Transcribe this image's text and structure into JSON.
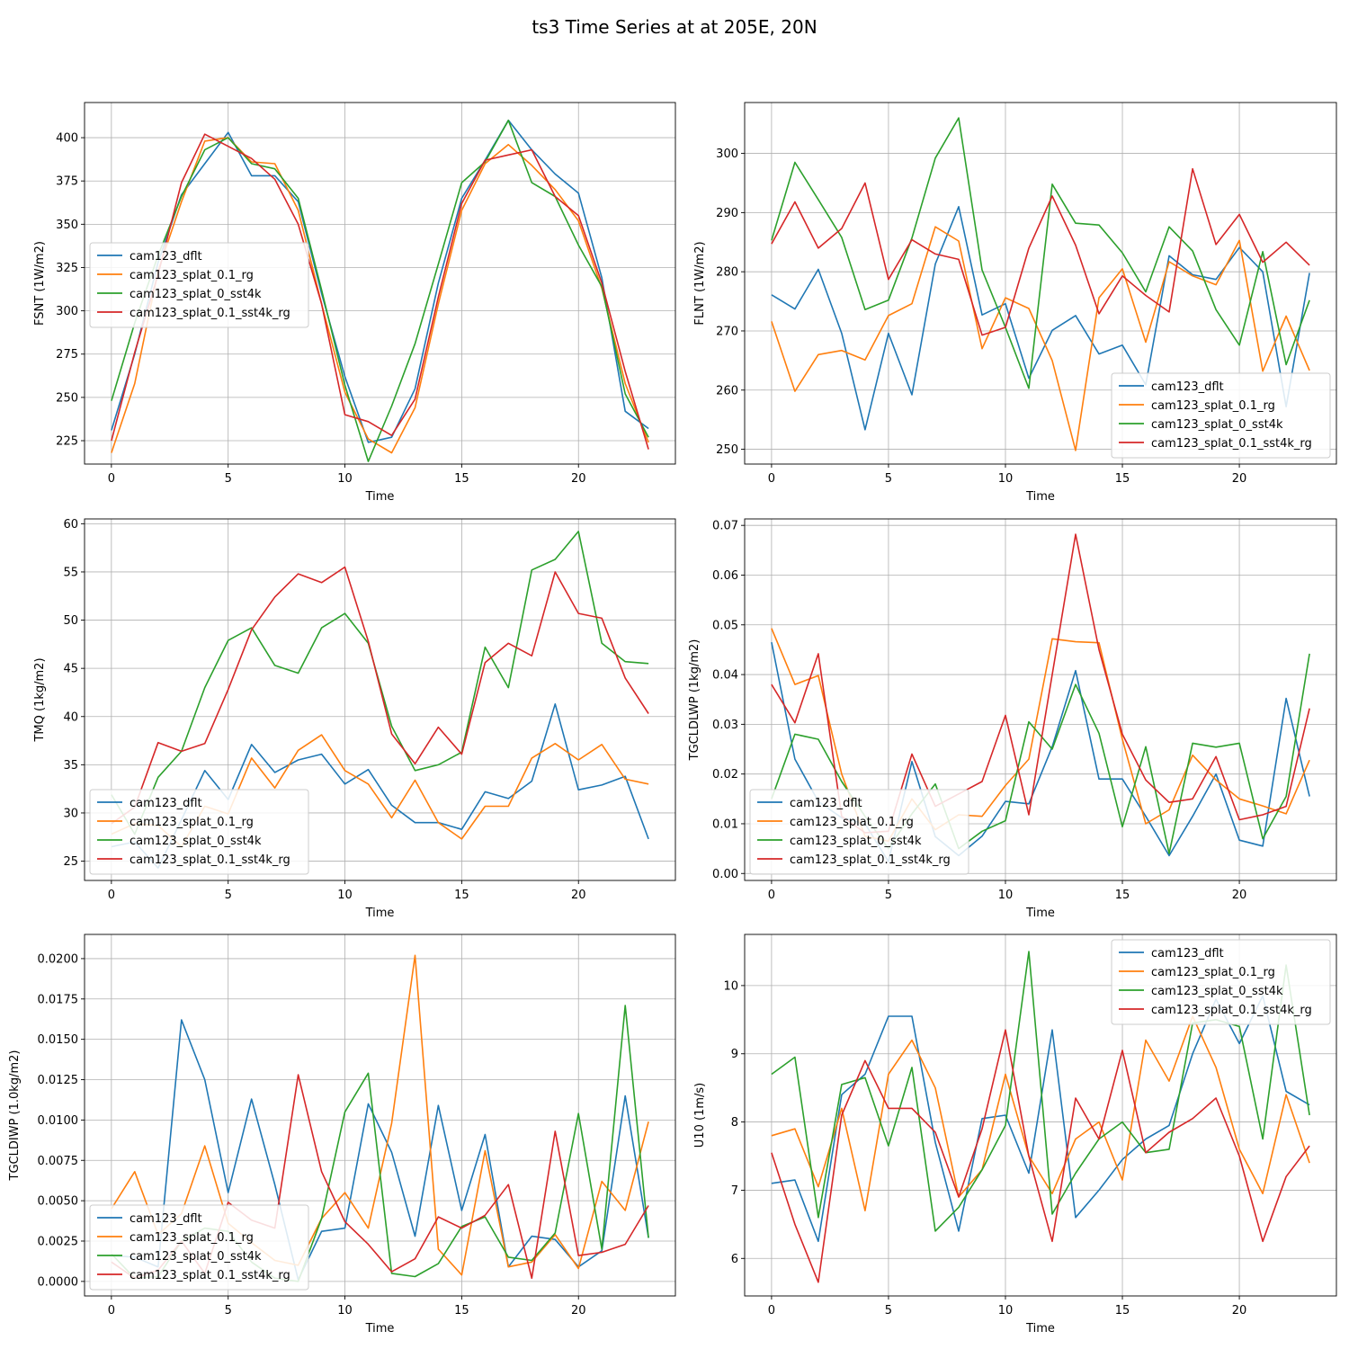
{
  "title": "ts3 Time Series at at 205E, 20N",
  "colors": [
    "#1f77b4",
    "#ff7f0e",
    "#2ca02c",
    "#d62728"
  ],
  "legend": [
    "cam123_dflt",
    "cam123_splat_0.1_rg",
    "cam123_splat_0_sst4k",
    "cam123_splat_0.1_sst4k_rg"
  ],
  "chart_data": [
    {
      "type": "line",
      "xlabel": "Time",
      "ylabel": "FSNT (1W/m2)",
      "xlim": [
        -1.15,
        24.15
      ],
      "ylim": [
        420.3,
        211.5
      ],
      "xticks": [
        0,
        5,
        10,
        15,
        20
      ],
      "xtick_labels": [
        "0",
        "5",
        "10",
        "15",
        "20"
      ],
      "yticks": [
        225,
        250,
        275,
        300,
        325,
        350,
        375,
        400
      ],
      "ytick_labels": [
        "225",
        "250",
        "275",
        "300",
        "325",
        "350",
        "375",
        "400"
      ],
      "legend_loc": "center-left",
      "x": [
        0,
        1,
        2,
        3,
        4,
        5,
        6,
        7,
        8,
        9,
        10,
        11,
        12,
        13,
        14,
        15,
        16,
        17,
        18,
        19,
        20,
        21,
        22,
        23
      ],
      "series": [
        {
          "name": "cam123_dflt",
          "values": [
            231,
            275,
            328,
            367,
            385,
            403,
            378,
            378,
            363,
            310,
            262,
            224,
            227,
            255,
            316,
            365,
            387,
            410,
            393,
            379,
            368,
            319,
            242,
            232
          ]
        },
        {
          "name": "cam123_splat_0.1_rg",
          "values": [
            218,
            258,
            323,
            363,
            398,
            400,
            386,
            385,
            358,
            304,
            253,
            226,
            218,
            244,
            304,
            358,
            385,
            396,
            384,
            370,
            352,
            313,
            258,
            224
          ]
        },
        {
          "name": "cam123_splat_0_sst4k",
          "values": [
            248,
            293,
            332,
            366,
            393,
            400,
            385,
            382,
            365,
            312,
            257,
            213,
            245,
            281,
            327,
            374,
            386,
            410,
            374,
            366,
            338,
            314,
            252,
            227
          ]
        },
        {
          "name": "cam123_splat_0.1_sst4k_rg",
          "values": [
            225,
            276,
            321,
            374,
            402,
            395,
            388,
            376,
            350,
            304,
            240,
            236,
            228,
            249,
            308,
            362,
            387,
            390,
            393,
            366,
            355,
            316,
            265,
            220
          ]
        }
      ]
    },
    {
      "type": "line",
      "xlabel": "Time",
      "ylabel": "FLNT (1W/m2)",
      "xlim": [
        -1.15,
        24.15
      ],
      "ylim": [
        308.6,
        247.5
      ],
      "xticks": [
        0,
        5,
        10,
        15,
        20
      ],
      "xtick_labels": [
        "0",
        "5",
        "10",
        "15",
        "20"
      ],
      "yticks": [
        250,
        260,
        270,
        280,
        290,
        300
      ],
      "ytick_labels": [
        "250",
        "260",
        "270",
        "280",
        "290",
        "300"
      ],
      "legend_loc": "lower-right",
      "x": [
        0,
        1,
        2,
        3,
        4,
        5,
        6,
        7,
        8,
        9,
        10,
        11,
        12,
        13,
        14,
        15,
        16,
        17,
        18,
        19,
        20,
        21,
        22,
        23
      ],
      "series": [
        {
          "name": "cam123_dflt",
          "values": [
            276.1,
            273.7,
            280.4,
            269.6,
            253.3,
            269.6,
            259.2,
            281.3,
            291.0,
            272.7,
            274.6,
            262.0,
            270.1,
            272.6,
            266.1,
            267.6,
            260.9,
            282.7,
            279.5,
            278.7,
            284.1,
            280.0,
            257.2,
            279.8
          ]
        },
        {
          "name": "cam123_splat_0.1_rg",
          "values": [
            271.6,
            259.8,
            266.0,
            266.7,
            265.1,
            272.6,
            274.6,
            287.6,
            285.2,
            267.0,
            275.6,
            273.8,
            265.0,
            249.8,
            275.6,
            280.5,
            268.1,
            281.7,
            279.3,
            277.8,
            285.3,
            263.2,
            272.5,
            263.3
          ]
        },
        {
          "name": "cam123_splat_0_sst4k",
          "values": [
            285.3,
            298.5,
            292.2,
            285.8,
            273.6,
            275.2,
            285.7,
            299.2,
            306.0,
            280.3,
            270.6,
            260.3,
            294.8,
            288.2,
            287.9,
            283.2,
            276.6,
            287.6,
            283.5,
            273.6,
            267.6,
            283.4,
            264.3,
            275.2
          ]
        },
        {
          "name": "cam123_splat_0.1_sst4k_rg",
          "values": [
            284.7,
            291.8,
            284.0,
            287.3,
            295.0,
            278.7,
            285.4,
            283.0,
            282.1,
            269.3,
            270.6,
            284.0,
            292.8,
            284.5,
            272.9,
            279.3,
            276.0,
            273.2,
            297.4,
            284.6,
            289.7,
            281.6,
            285.0,
            281.1
          ]
        }
      ]
    },
    {
      "type": "line",
      "xlabel": "Time",
      "ylabel": "TMQ (1kg/m2)",
      "xlim": [
        -1.15,
        24.15
      ],
      "ylim": [
        60.5,
        23.0
      ],
      "xticks": [
        0,
        5,
        10,
        15,
        20
      ],
      "xtick_labels": [
        "0",
        "5",
        "10",
        "15",
        "20"
      ],
      "yticks": [
        25,
        30,
        35,
        40,
        45,
        50,
        55,
        60
      ],
      "ytick_labels": [
        "25",
        "30",
        "35",
        "40",
        "45",
        "50",
        "55",
        "60"
      ],
      "legend_loc": "lower-left",
      "x": [
        0,
        1,
        2,
        3,
        4,
        5,
        6,
        7,
        8,
        9,
        10,
        11,
        12,
        13,
        14,
        15,
        16,
        17,
        18,
        19,
        20,
        21,
        22,
        23
      ],
      "series": [
        {
          "name": "cam123_dflt",
          "values": [
            26.5,
            27.0,
            24.3,
            29.3,
            34.4,
            31.4,
            37.1,
            34.2,
            35.5,
            36.1,
            33.0,
            34.5,
            30.8,
            29.0,
            29.0,
            28.3,
            32.2,
            31.5,
            33.3,
            41.3,
            32.4,
            32.9,
            33.8,
            27.3
          ]
        },
        {
          "name": "cam123_splat_0.1_rg",
          "values": [
            27.8,
            28.9,
            28.7,
            26.5,
            30.7,
            29.9,
            35.7,
            32.6,
            36.5,
            38.1,
            34.4,
            33.0,
            29.5,
            33.4,
            29.0,
            27.3,
            30.7,
            30.7,
            35.7,
            37.2,
            35.5,
            37.1,
            33.5,
            33.0
          ]
        },
        {
          "name": "cam123_splat_0_sst4k",
          "values": [
            31.9,
            27.8,
            33.7,
            36.4,
            43.0,
            47.9,
            49.2,
            45.3,
            44.5,
            49.2,
            50.7,
            47.6,
            39.0,
            34.4,
            35.0,
            36.3,
            47.2,
            43.0,
            55.2,
            56.3,
            59.2,
            47.6,
            45.7,
            45.5
          ]
        },
        {
          "name": "cam123_splat_0.1_sst4k_rg",
          "values": [
            28.9,
            30.6,
            37.3,
            36.4,
            37.2,
            42.8,
            49.0,
            52.4,
            54.8,
            53.9,
            55.5,
            47.8,
            38.2,
            35.1,
            38.9,
            36.1,
            45.6,
            47.6,
            46.3,
            55.0,
            50.7,
            50.2,
            44.0,
            40.3
          ]
        }
      ]
    },
    {
      "type": "line",
      "xlabel": "Time",
      "ylabel": "TGCLDLWP (1kg/m2)",
      "xlim": [
        -1.15,
        24.15
      ],
      "ylim": [
        0.0713,
        -0.0014
      ],
      "xticks": [
        0,
        5,
        10,
        15,
        20
      ],
      "xtick_labels": [
        "0",
        "5",
        "10",
        "15",
        "20"
      ],
      "yticks": [
        0.0,
        0.01,
        0.02,
        0.03,
        0.04,
        0.05,
        0.06,
        0.07
      ],
      "ytick_labels": [
        "0.00",
        "0.01",
        "0.02",
        "0.03",
        "0.04",
        "0.05",
        "0.06",
        "0.07"
      ],
      "legend_loc": "lower-left",
      "x": [
        0,
        1,
        2,
        3,
        4,
        5,
        6,
        7,
        8,
        9,
        10,
        11,
        12,
        13,
        14,
        15,
        16,
        17,
        18,
        19,
        20,
        21,
        22,
        23
      ],
      "series": [
        {
          "name": "cam123_dflt",
          "values": [
            0.0465,
            0.023,
            0.0145,
            0.0112,
            0.01,
            0.0024,
            0.0225,
            0.0074,
            0.0036,
            0.0075,
            0.0145,
            0.014,
            0.0255,
            0.0408,
            0.019,
            0.019,
            0.0115,
            0.0036,
            0.0115,
            0.02,
            0.0067,
            0.0055,
            0.0352,
            0.0155
          ]
        },
        {
          "name": "cam123_splat_0.1_rg",
          "values": [
            0.0493,
            0.038,
            0.0398,
            0.02,
            0.0075,
            0.0065,
            0.015,
            0.0088,
            0.0118,
            0.0115,
            0.0177,
            0.023,
            0.0472,
            0.0466,
            0.0464,
            0.027,
            0.01,
            0.0128,
            0.0238,
            0.0188,
            0.015,
            0.0136,
            0.012,
            0.0228
          ]
        },
        {
          "name": "cam123_splat_0_sst4k",
          "values": [
            0.015,
            0.028,
            0.027,
            0.0185,
            0.0115,
            0.005,
            0.012,
            0.018,
            0.005,
            0.0085,
            0.0106,
            0.0305,
            0.025,
            0.038,
            0.0282,
            0.0094,
            0.0255,
            0.004,
            0.0262,
            0.0254,
            0.0262,
            0.007,
            0.0155,
            0.0442
          ]
        },
        {
          "name": "cam123_splat_0.1_sst4k_rg",
          "values": [
            0.038,
            0.0303,
            0.0442,
            0.0115,
            0.0082,
            0.0085,
            0.024,
            0.0135,
            0.016,
            0.0185,
            0.0318,
            0.0118,
            0.04,
            0.0682,
            0.045,
            0.028,
            0.0188,
            0.0143,
            0.015,
            0.0235,
            0.0108,
            0.0118,
            0.0135,
            0.0332
          ]
        }
      ]
    },
    {
      "type": "line",
      "xlabel": "Time",
      "ylabel": "TGCLDIWP (1.0kg/m2)",
      "xlim": [
        -1.15,
        24.15
      ],
      "ylim": [
        0.0215,
        -0.0009
      ],
      "xticks": [
        0,
        5,
        10,
        15,
        20
      ],
      "xtick_labels": [
        "0",
        "5",
        "10",
        "15",
        "20"
      ],
      "yticks": [
        0.0,
        0.0025,
        0.005,
        0.0075,
        0.01,
        0.0125,
        0.015,
        0.0175,
        0.02
      ],
      "ytick_labels": [
        "0.0000",
        "0.0025",
        "0.0050",
        "0.0075",
        "0.0100",
        "0.0125",
        "0.0150",
        "0.0175",
        "0.0200"
      ],
      "legend_loc": "lower-left",
      "x": [
        0,
        1,
        2,
        3,
        4,
        5,
        6,
        7,
        8,
        9,
        10,
        11,
        12,
        13,
        14,
        15,
        16,
        17,
        18,
        19,
        20,
        21,
        22,
        23
      ],
      "series": [
        {
          "name": "cam123_dflt",
          "values": [
            0.0016,
            0.0015,
            0.0009,
            0.0162,
            0.0125,
            0.0055,
            0.0113,
            0.006,
            0.0001,
            0.0031,
            0.0033,
            0.011,
            0.008,
            0.0028,
            0.0109,
            0.0044,
            0.0091,
            0.0009,
            0.0028,
            0.0026,
            0.0009,
            0.0019,
            0.0115,
            0.0027
          ]
        },
        {
          "name": "cam123_splat_0.1_rg",
          "values": [
            0.0045,
            0.0068,
            0.0029,
            0.0042,
            0.0084,
            0.0036,
            0.0024,
            0.0013,
            0.001,
            0.0039,
            0.0055,
            0.0033,
            0.0098,
            0.0202,
            0.002,
            0.0004,
            0.0081,
            0.0009,
            0.0012,
            0.0029,
            0.0008,
            0.0062,
            0.0044,
            0.0099
          ]
        },
        {
          "name": "cam123_splat_0_sst4k",
          "values": [
            0.0017,
            0.0002,
            0.0003,
            0.0025,
            0.0033,
            0.0031,
            0.0012,
            0.0002,
            0.0,
            0.0039,
            0.0105,
            0.0129,
            0.0005,
            0.0003,
            0.0011,
            0.0034,
            0.004,
            0.0015,
            0.0013,
            0.003,
            0.0104,
            0.002,
            0.0171,
            0.0027
          ]
        },
        {
          "name": "cam123_splat_0.1_sst4k_rg",
          "values": [
            0.0012,
            0.0002,
            0.0007,
            0.0025,
            0.0005,
            0.0049,
            0.0038,
            0.0033,
            0.0128,
            0.0068,
            0.0037,
            0.0023,
            0.0006,
            0.0014,
            0.004,
            0.0033,
            0.0041,
            0.006,
            0.0002,
            0.0093,
            0.0016,
            0.0018,
            0.0023,
            0.0047
          ]
        }
      ]
    },
    {
      "type": "line",
      "xlabel": "Time",
      "ylabel": "U10 (1m/s)",
      "xlim": [
        -1.15,
        24.15
      ],
      "ylim": [
        10.75,
        5.45
      ],
      "xticks": [
        0,
        5,
        10,
        15,
        20
      ],
      "xtick_labels": [
        "0",
        "5",
        "10",
        "15",
        "20"
      ],
      "yticks": [
        6,
        7,
        8,
        9,
        10
      ],
      "ytick_labels": [
        "6",
        "7",
        "8",
        "9",
        "10"
      ],
      "legend_loc": "upper-right",
      "x": [
        0,
        1,
        2,
        3,
        4,
        5,
        6,
        7,
        8,
        9,
        10,
        11,
        12,
        13,
        14,
        15,
        16,
        17,
        18,
        19,
        20,
        21,
        22,
        23
      ],
      "series": [
        {
          "name": "cam123_dflt",
          "values": [
            7.1,
            7.15,
            6.25,
            8.4,
            8.7,
            9.55,
            9.55,
            7.7,
            6.4,
            8.05,
            8.1,
            7.25,
            9.35,
            6.6,
            7.0,
            7.45,
            7.75,
            7.95,
            9.0,
            9.8,
            9.15,
            9.85,
            8.45,
            8.25
          ]
        },
        {
          "name": "cam123_splat_0.1_rg",
          "values": [
            7.8,
            7.9,
            7.05,
            8.2,
            6.7,
            8.7,
            9.2,
            8.5,
            6.9,
            7.3,
            8.7,
            7.5,
            6.95,
            7.75,
            8.0,
            7.15,
            9.2,
            8.6,
            9.55,
            8.8,
            7.6,
            6.95,
            8.4,
            7.4
          ]
        },
        {
          "name": "cam123_splat_0_sst4k",
          "values": [
            8.7,
            8.95,
            6.6,
            8.55,
            8.65,
            7.65,
            8.8,
            6.4,
            6.75,
            7.3,
            7.95,
            10.5,
            6.65,
            7.25,
            7.75,
            8.0,
            7.55,
            7.6,
            9.45,
            9.5,
            9.4,
            7.75,
            10.3,
            8.1
          ]
        },
        {
          "name": "cam123_splat_0.1_sst4k_rg",
          "values": [
            7.55,
            6.5,
            5.65,
            8.1,
            8.9,
            8.2,
            8.2,
            7.85,
            6.9,
            7.9,
            9.35,
            7.5,
            6.25,
            8.35,
            7.75,
            9.05,
            7.55,
            7.85,
            8.05,
            8.35,
            7.5,
            6.25,
            7.2,
            7.65
          ]
        }
      ]
    }
  ]
}
